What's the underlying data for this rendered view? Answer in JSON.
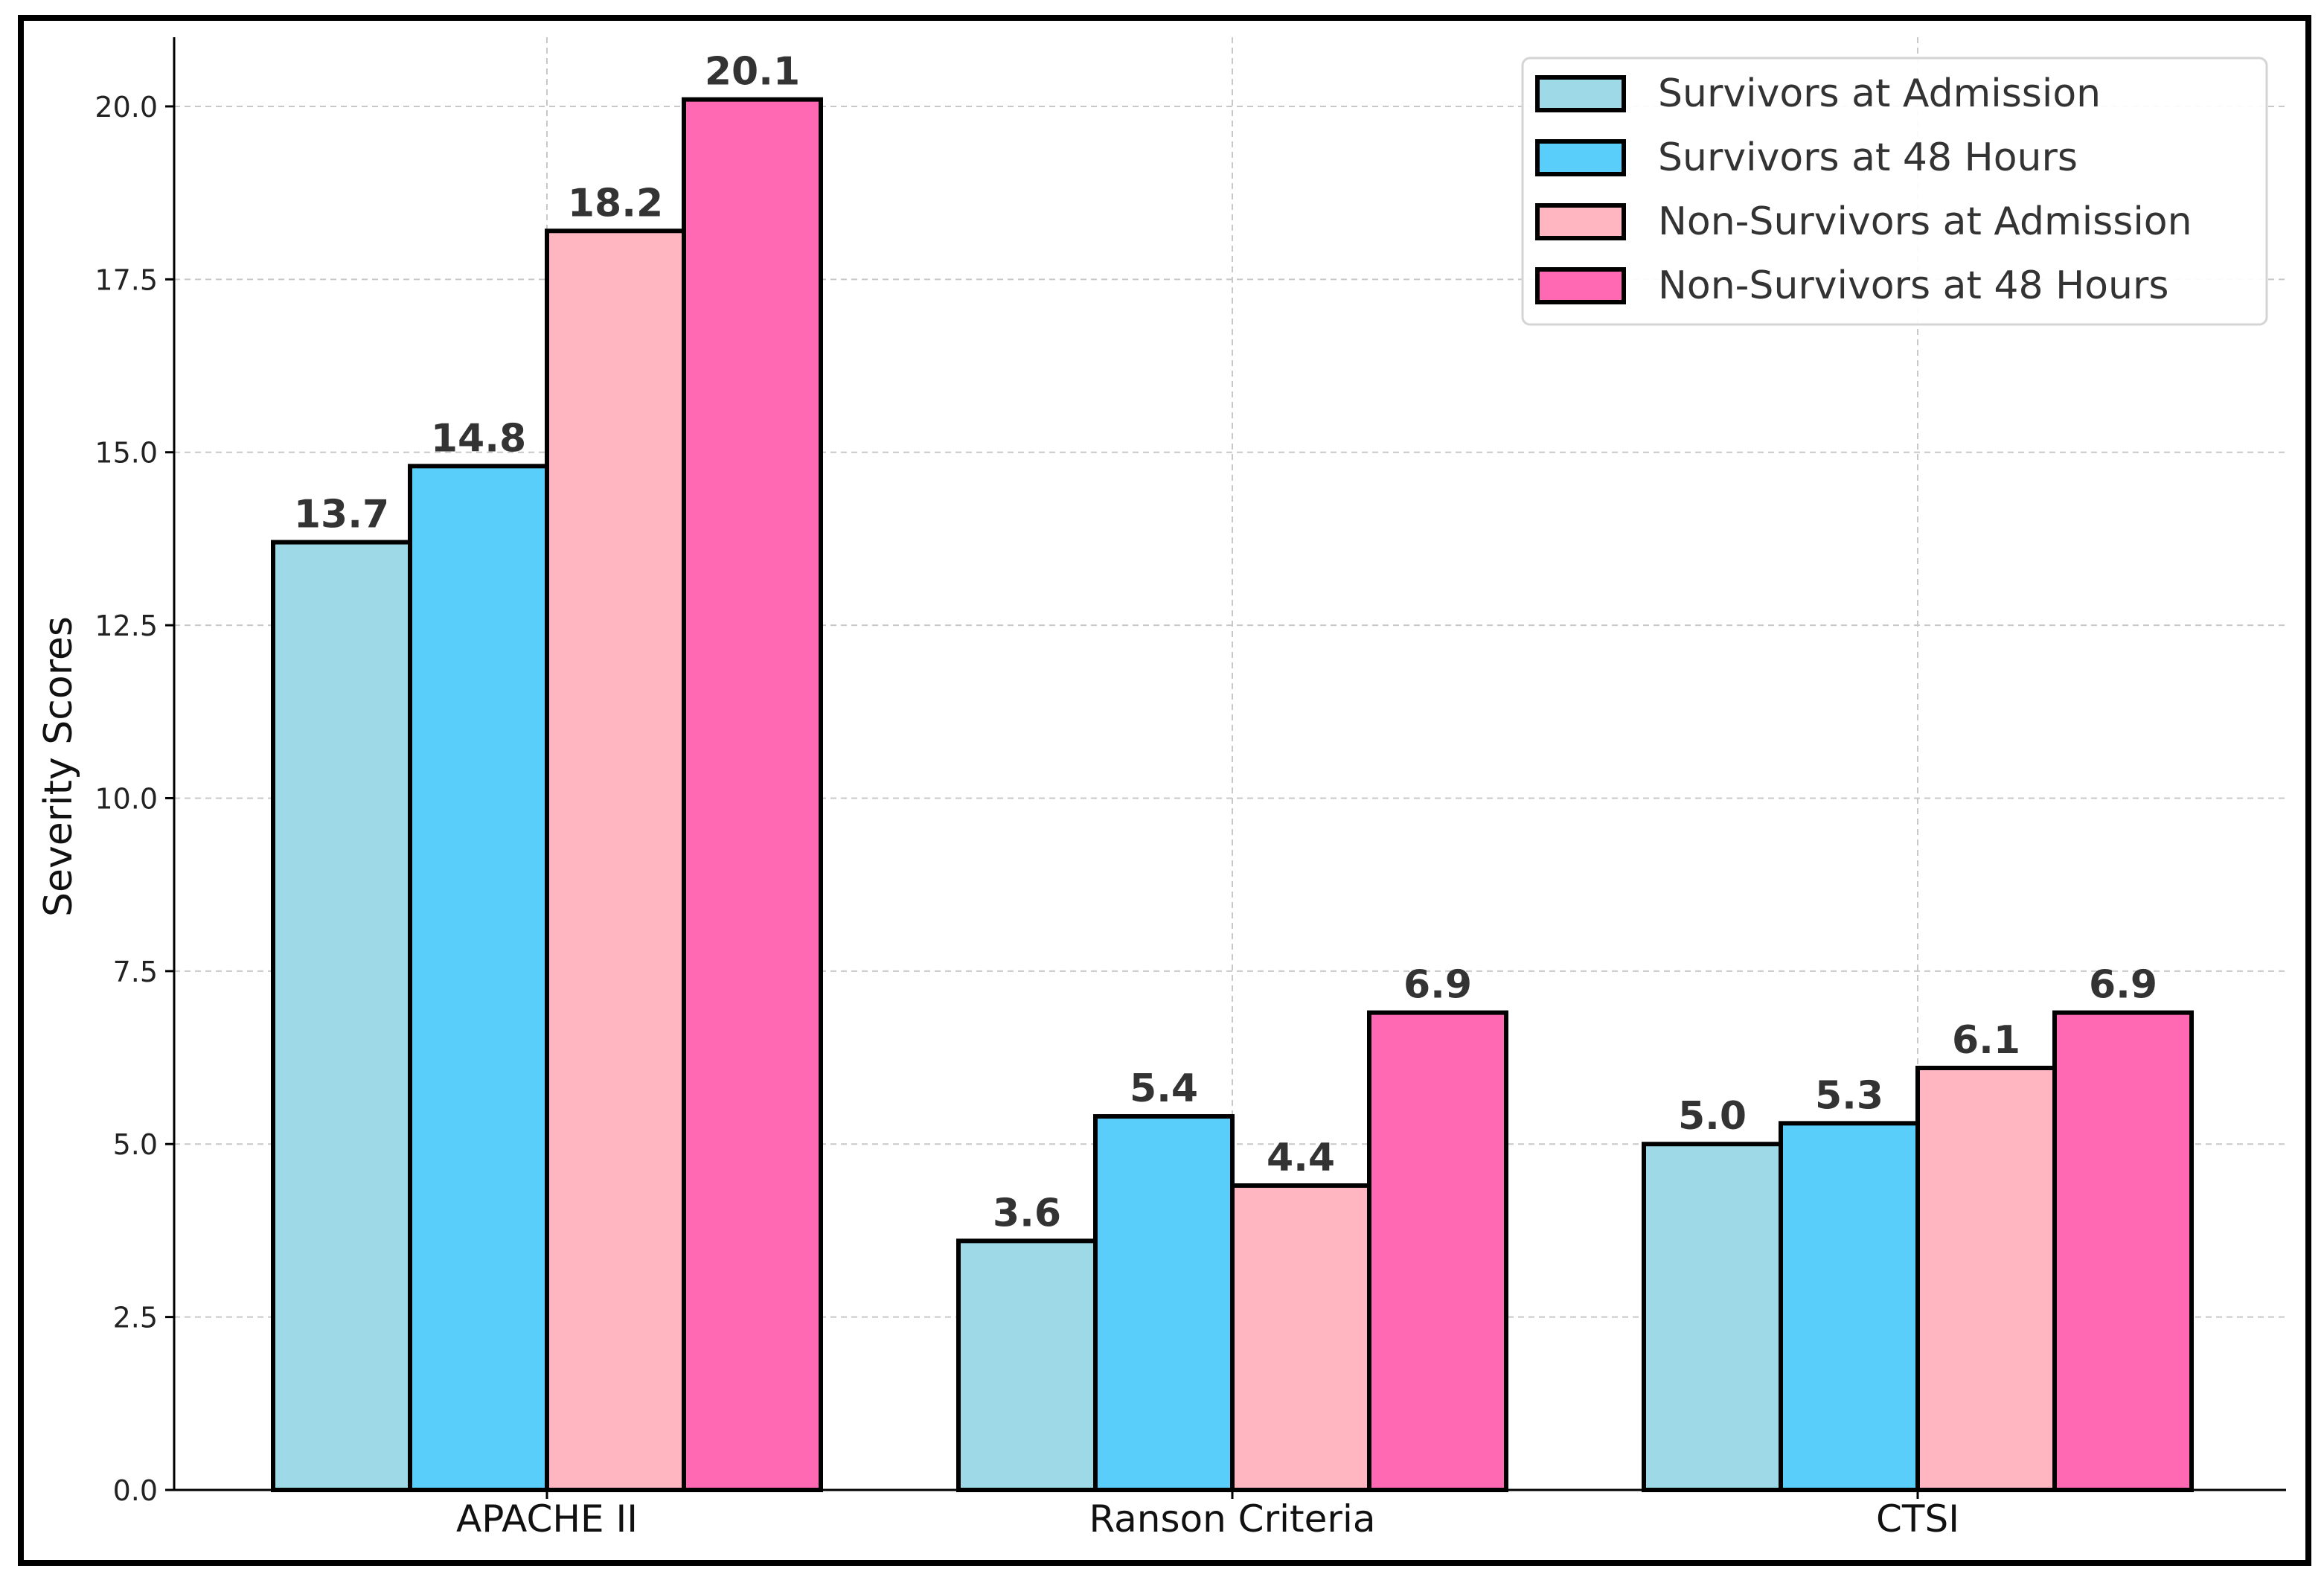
{
  "chart_data": {
    "type": "bar",
    "title": "",
    "xlabel": "",
    "ylabel": "Severity Scores",
    "ylim": [
      0,
      21
    ],
    "yticks": [
      0.0,
      2.5,
      5.0,
      7.5,
      10.0,
      12.5,
      15.0,
      17.5,
      20.0
    ],
    "ytick_labels": [
      "0.0",
      "2.5",
      "5.0",
      "7.5",
      "10.0",
      "12.5",
      "15.0",
      "17.5",
      "20.0"
    ],
    "grid": true,
    "legend_position": "top-right",
    "categories": [
      "APACHE II",
      "Ranson Criteria",
      "CTSI"
    ],
    "series": [
      {
        "name": "Survivors at Admission",
        "color": "#9dd9e6",
        "values": [
          13.7,
          3.6,
          5.0
        ],
        "labels": [
          "13.7",
          "3.6",
          "5.0"
        ]
      },
      {
        "name": "Survivors at 48 Hours",
        "color": "#59cefb",
        "values": [
          14.8,
          5.4,
          5.3
        ],
        "labels": [
          "14.8",
          "5.4",
          "5.3"
        ]
      },
      {
        "name": "Non-Survivors at Admission",
        "color": "#ffb6c1",
        "values": [
          18.2,
          4.4,
          6.1
        ],
        "labels": [
          "18.2",
          "4.4",
          "6.1"
        ]
      },
      {
        "name": "Non-Survivors at 48 Hours",
        "color": "#ff69b4",
        "values": [
          20.1,
          6.9,
          6.9
        ],
        "labels": [
          "20.1",
          "6.9",
          "6.9"
        ]
      }
    ]
  }
}
